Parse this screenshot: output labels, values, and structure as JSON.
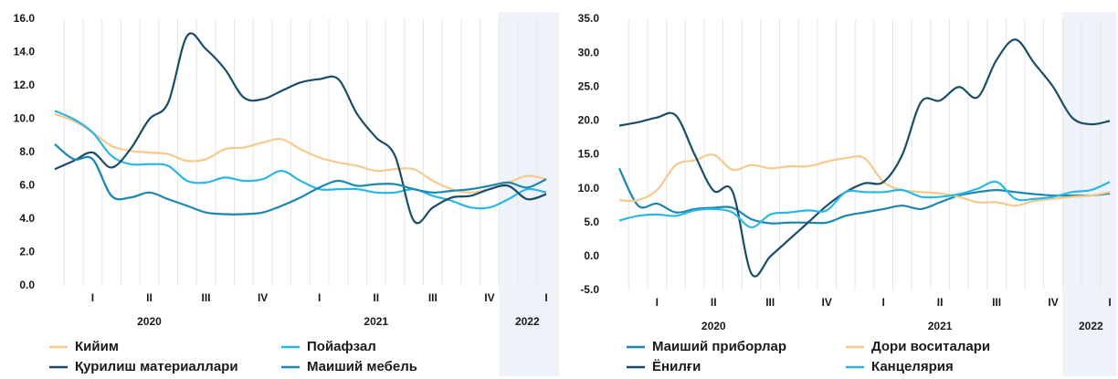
{
  "chart_data": [
    {
      "type": "line",
      "categories": [
        null,
        null,
        "I",
        null,
        null,
        "II",
        null,
        null,
        "III",
        null,
        null,
        "IV",
        null,
        null,
        "I",
        null,
        null,
        "II",
        null,
        null,
        "III",
        null,
        null,
        "IV",
        null,
        null,
        "I"
      ],
      "years": [
        "2020",
        "2021",
        "2022"
      ],
      "ylim": [
        0,
        16
      ],
      "yticks": [
        {
          "value": 0,
          "label": "0.0"
        },
        {
          "value": 2,
          "label": "2.0"
        },
        {
          "value": 4,
          "label": "4.0"
        },
        {
          "value": 6,
          "label": "6.0"
        },
        {
          "value": 8,
          "label": "8.0"
        },
        {
          "value": 10,
          "label": "10.0"
        },
        {
          "value": 12,
          "label": "12.0"
        },
        {
          "value": 14,
          "label": "14.0"
        },
        {
          "value": 16,
          "label": "16.0"
        }
      ],
      "grid": "x",
      "series": [
        {
          "name": "Кийим",
          "color": "#f8c98c",
          "values": [
            10.3,
            9.9,
            9.2,
            8.4,
            8.1,
            8.0,
            7.9,
            7.5,
            7.6,
            8.2,
            8.3,
            8.6,
            8.8,
            8.2,
            7.7,
            7.4,
            7.2,
            6.9,
            7.0,
            7.0,
            6.3,
            5.8,
            5.6,
            5.8,
            6.2,
            6.6,
            6.4
          ]
        },
        {
          "name": "Пойафзал",
          "color": "#2ab7e6",
          "values": [
            10.5,
            10.0,
            9.2,
            7.8,
            7.3,
            7.3,
            7.2,
            6.3,
            6.2,
            6.5,
            6.3,
            6.4,
            6.9,
            6.3,
            5.8,
            5.8,
            5.8,
            5.6,
            5.6,
            5.8,
            5.4,
            5.1,
            4.7,
            4.7,
            5.2,
            5.8,
            5.6
          ]
        },
        {
          "name": "Қурилиш материаллари",
          "color": "#1a4d68",
          "values": [
            7.0,
            7.5,
            8.0,
            7.1,
            8.2,
            10.0,
            11.0,
            15.0,
            14.2,
            13.0,
            11.3,
            11.2,
            11.7,
            12.2,
            12.4,
            12.4,
            10.3,
            8.9,
            7.8,
            3.9,
            4.7,
            5.3,
            5.4,
            5.8,
            6.0,
            5.2,
            5.5
          ]
        },
        {
          "name": "Маиший мебель",
          "color": "#1b86b0",
          "values": [
            8.5,
            7.6,
            7.6,
            5.4,
            5.3,
            5.6,
            5.2,
            4.8,
            4.4,
            4.3,
            4.3,
            4.4,
            4.8,
            5.3,
            5.9,
            6.3,
            6.0,
            6.1,
            6.1,
            5.8,
            5.6,
            5.7,
            5.8,
            6.0,
            6.2,
            5.9,
            6.4
          ]
        }
      ]
    },
    {
      "type": "line",
      "categories": [
        null,
        null,
        "I",
        null,
        null,
        "II",
        null,
        null,
        "III",
        null,
        null,
        "IV",
        null,
        null,
        "I",
        null,
        null,
        "II",
        null,
        null,
        "III",
        null,
        null,
        "IV",
        null,
        null,
        "I"
      ],
      "years": [
        "2020",
        "2021",
        "2022"
      ],
      "ylim": [
        -5,
        35
      ],
      "yticks": [
        {
          "value": -5,
          "label": "-5.0"
        },
        {
          "value": 0,
          "label": "0.0"
        },
        {
          "value": 5,
          "label": "5.0"
        },
        {
          "value": 10,
          "label": "10.0"
        },
        {
          "value": 15,
          "label": "15.0"
        },
        {
          "value": 20,
          "label": "20.0"
        },
        {
          "value": 25,
          "label": "25.0"
        },
        {
          "value": 30,
          "label": "30.0"
        },
        {
          "value": 35,
          "label": "35.0"
        }
      ],
      "grid": "x",
      "series": [
        {
          "name": "Маиший приборлар",
          "color": "#1b86b0",
          "values": [
            13.0,
            7.5,
            7.8,
            6.5,
            7.0,
            7.2,
            7.2,
            5.5,
            4.9,
            5.0,
            5.0,
            5.0,
            6.0,
            6.5,
            7.0,
            7.5,
            7.0,
            8.0,
            9.0,
            9.5,
            9.8,
            9.5,
            9.2,
            9.0,
            9.0,
            9.0,
            9.3
          ]
        },
        {
          "name": "Дори воситалари",
          "color": "#f8c98c",
          "values": [
            8.3,
            8.3,
            9.8,
            13.5,
            14.2,
            15.0,
            12.8,
            13.5,
            13.0,
            13.3,
            13.3,
            14.0,
            14.5,
            14.5,
            11.0,
            9.8,
            9.5,
            9.3,
            8.8,
            8.0,
            8.0,
            7.5,
            8.2,
            8.5,
            8.8,
            9.0,
            9.5
          ]
        },
        {
          "name": "Ёнилғи",
          "color": "#1a4d68",
          "values": [
            19.3,
            19.8,
            20.5,
            20.8,
            15.0,
            9.7,
            9.6,
            -2.5,
            0.0,
            2.5,
            5.0,
            7.5,
            9.5,
            10.8,
            11.0,
            15.0,
            22.8,
            23.0,
            25.0,
            23.5,
            29.0,
            32.0,
            28.5,
            25.0,
            20.5,
            19.5,
            20.0
          ]
        },
        {
          "name": "Канцелярия",
          "color": "#2ab7e6",
          "values": [
            5.3,
            6.0,
            6.2,
            6.0,
            6.8,
            7.0,
            6.5,
            4.3,
            6.2,
            6.5,
            6.8,
            6.8,
            9.5,
            9.5,
            9.5,
            9.8,
            8.8,
            8.8,
            9.2,
            10.0,
            11.0,
            8.5,
            8.5,
            8.8,
            9.5,
            9.8,
            11.0
          ]
        }
      ]
    }
  ]
}
